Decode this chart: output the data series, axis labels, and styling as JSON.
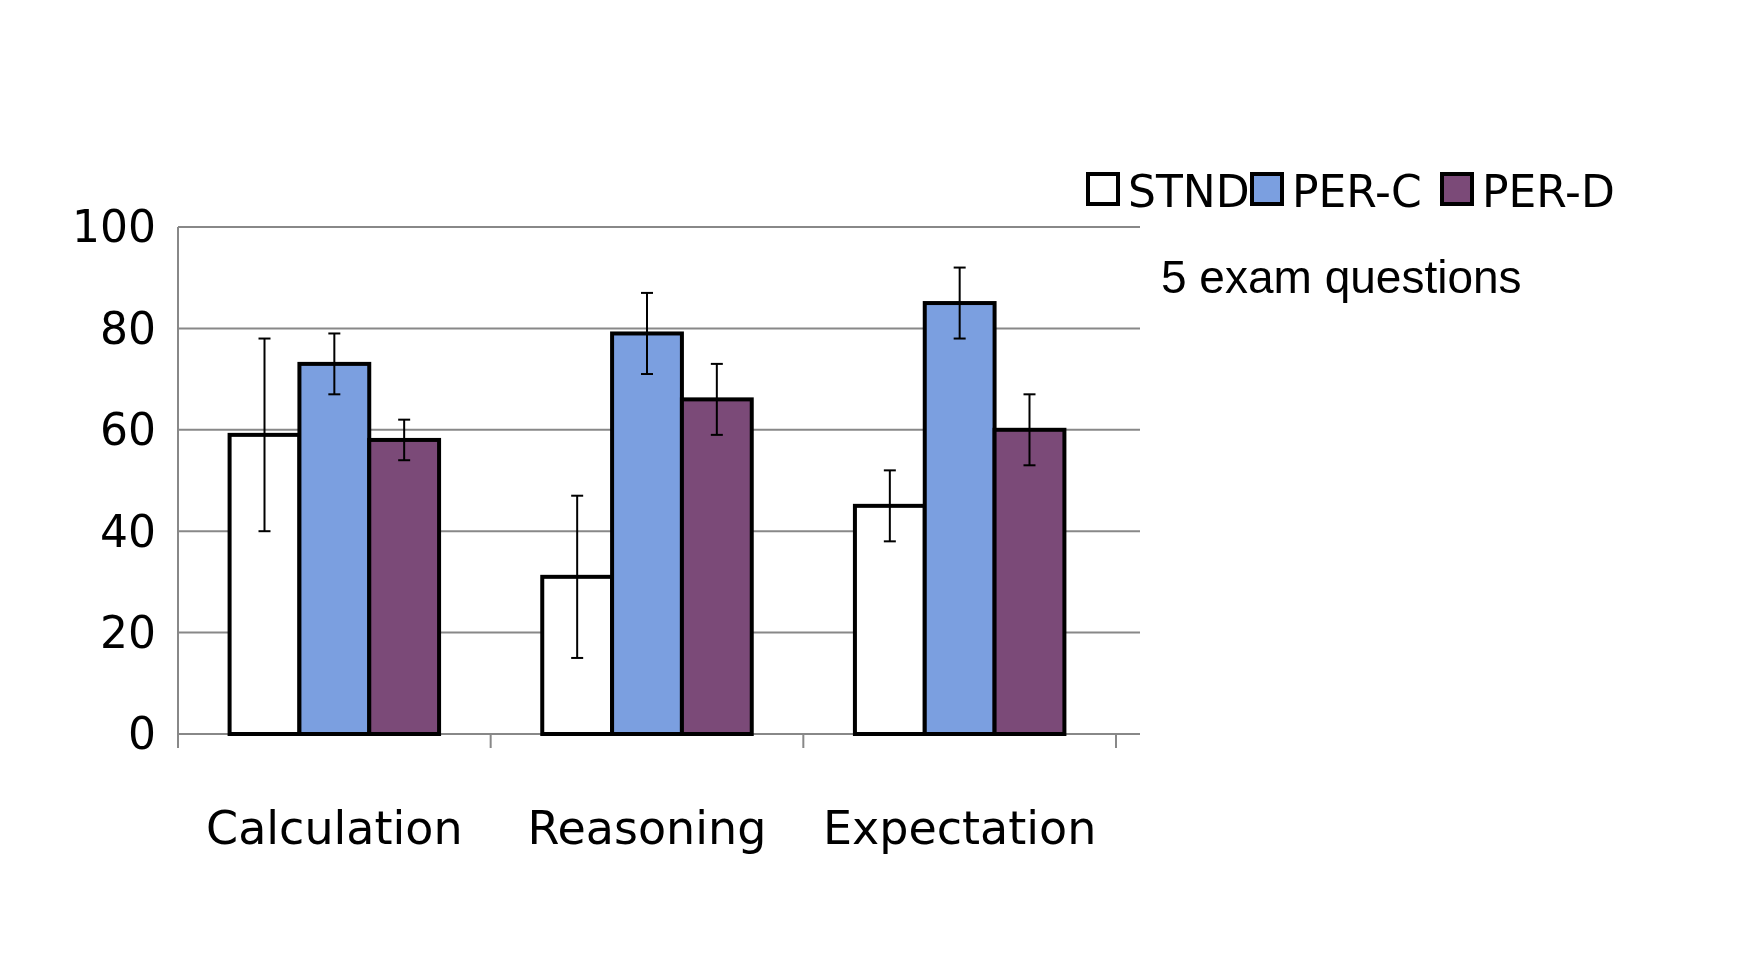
{
  "chart_data": {
    "type": "bar",
    "categories": [
      "Calculation",
      "Reasoning",
      "Expectation"
    ],
    "series": [
      {
        "name": "STND",
        "color": "#ffffff",
        "values": [
          59,
          31,
          45
        ],
        "errors": [
          19,
          16,
          7
        ]
      },
      {
        "name": "PER-C",
        "color": "#7b9fe0",
        "values": [
          73,
          79,
          85
        ],
        "errors": [
          6,
          8,
          7
        ]
      },
      {
        "name": "PER-D",
        "color": "#7b4a78",
        "values": [
          58,
          66,
          60
        ],
        "errors": [
          4,
          7,
          7
        ]
      }
    ],
    "ylim": [
      0,
      100
    ],
    "yticks": [
      0,
      20,
      40,
      60,
      80,
      100
    ],
    "grid": "y",
    "legend": "top right",
    "annotations": [
      "5 exam questions"
    ]
  }
}
